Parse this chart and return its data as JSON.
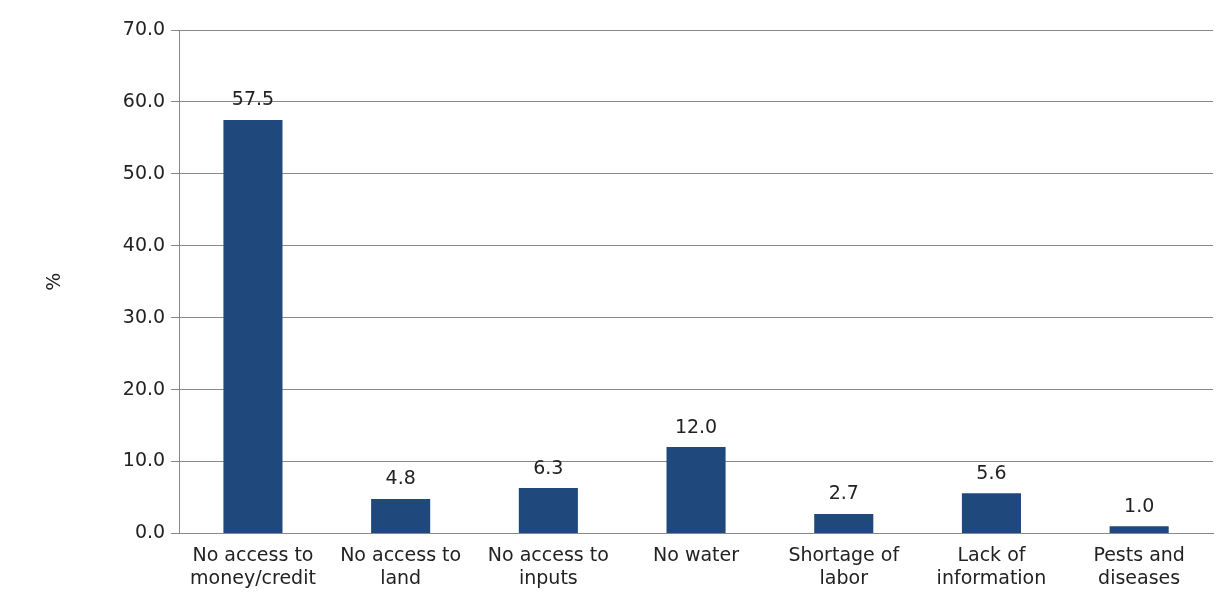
{
  "chart_data": {
    "type": "bar",
    "ylabel": "%",
    "categories": [
      "No access to money/credit",
      "No access to land",
      "No access to inputs",
      "No water",
      "Shortage of labor",
      "Lack of information",
      "Pests and diseases"
    ],
    "values": [
      57.5,
      4.8,
      6.3,
      12.0,
      2.7,
      5.6,
      1.0
    ],
    "value_labels": [
      "57.5",
      "4.8",
      "6.3",
      "12.0",
      "2.7",
      "5.6",
      "1.0"
    ],
    "color": "#1f497d",
    "ylim": [
      0,
      70
    ],
    "yticks": [
      {
        "value": 0,
        "label": "0.0"
      },
      {
        "value": 10,
        "label": "10.0"
      },
      {
        "value": 20,
        "label": "20.0"
      },
      {
        "value": 30,
        "label": "30.0"
      },
      {
        "value": 40,
        "label": "40.0"
      },
      {
        "value": 50,
        "label": "50.0"
      },
      {
        "value": 60,
        "label": "60.0"
      },
      {
        "value": 70,
        "label": "70.0"
      }
    ],
    "grid": "y",
    "legend": false
  }
}
